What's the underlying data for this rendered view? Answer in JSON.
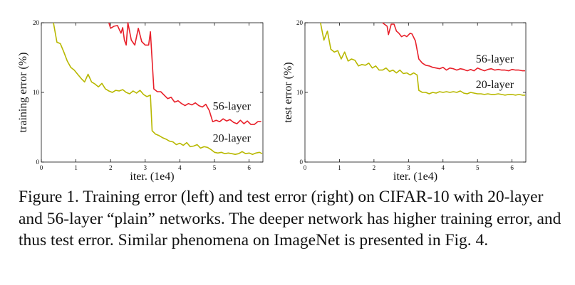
{
  "chart_data": [
    {
      "type": "line",
      "title": "",
      "xlabel": "iter. (1e4)",
      "ylabel": "training error (%)",
      "xlim": [
        0,
        6.4
      ],
      "ylim": [
        0,
        20
      ],
      "xticks": [
        0,
        1,
        2,
        3,
        4,
        5,
        6
      ],
      "yticks": [
        0,
        10,
        20
      ],
      "xtick_labels": [
        "0",
        "1",
        "2",
        "3",
        "4",
        "5",
        "6"
      ],
      "ytick_labels": [
        "0",
        "10",
        "20"
      ],
      "series": [
        {
          "name": "56-layer",
          "color": "#e8202a",
          "points": [
            [
              1.95,
              20
            ],
            [
              2.0,
              19.2
            ],
            [
              2.1,
              19.5
            ],
            [
              2.2,
              19.6
            ],
            [
              2.3,
              18.5
            ],
            [
              2.35,
              19.3
            ],
            [
              2.4,
              17.5
            ],
            [
              2.45,
              16.8
            ],
            [
              2.5,
              20
            ],
            [
              2.6,
              17.5
            ],
            [
              2.7,
              16.8
            ],
            [
              2.8,
              19.2
            ],
            [
              2.9,
              17.3
            ],
            [
              3.0,
              16.8
            ],
            [
              3.1,
              16.8
            ],
            [
              3.15,
              18.7
            ],
            [
              3.25,
              10.5
            ],
            [
              3.35,
              10.1
            ],
            [
              3.45,
              10.1
            ],
            [
              3.55,
              9.6
            ],
            [
              3.65,
              9.1
            ],
            [
              3.75,
              9.3
            ],
            [
              3.85,
              8.6
            ],
            [
              3.95,
              8.8
            ],
            [
              4.05,
              8.4
            ],
            [
              4.15,
              8.1
            ],
            [
              4.25,
              8.4
            ],
            [
              4.35,
              8.2
            ],
            [
              4.45,
              8.5
            ],
            [
              4.55,
              8.1
            ],
            [
              4.65,
              7.9
            ],
            [
              4.75,
              8.3
            ],
            [
              4.85,
              7.4
            ],
            [
              4.95,
              5.8
            ],
            [
              5.05,
              6.0
            ],
            [
              5.15,
              5.8
            ],
            [
              5.25,
              6.2
            ],
            [
              5.35,
              5.9
            ],
            [
              5.45,
              6.1
            ],
            [
              5.55,
              5.7
            ],
            [
              5.65,
              5.5
            ],
            [
              5.75,
              6.0
            ],
            [
              5.85,
              5.5
            ],
            [
              5.95,
              5.9
            ],
            [
              6.05,
              5.4
            ],
            [
              6.15,
              5.4
            ],
            [
              6.25,
              5.8
            ],
            [
              6.35,
              5.8
            ]
          ],
          "label_anchor": [
            6.05,
            7.5
          ]
        },
        {
          "name": "20-layer",
          "color": "#b8b800",
          "points": [
            [
              0.35,
              20
            ],
            [
              0.45,
              17.2
            ],
            [
              0.55,
              17.0
            ],
            [
              0.65,
              15.8
            ],
            [
              0.75,
              14.5
            ],
            [
              0.85,
              13.6
            ],
            [
              0.95,
              13.2
            ],
            [
              1.05,
              12.6
            ],
            [
              1.15,
              12.0
            ],
            [
              1.25,
              11.5
            ],
            [
              1.35,
              12.6
            ],
            [
              1.45,
              11.5
            ],
            [
              1.55,
              11.2
            ],
            [
              1.65,
              10.8
            ],
            [
              1.75,
              11.3
            ],
            [
              1.85,
              10.5
            ],
            [
              1.95,
              10.2
            ],
            [
              2.05,
              10.0
            ],
            [
              2.15,
              10.3
            ],
            [
              2.25,
              10.2
            ],
            [
              2.35,
              10.4
            ],
            [
              2.45,
              10.0
            ],
            [
              2.55,
              9.8
            ],
            [
              2.65,
              10.2
            ],
            [
              2.75,
              9.9
            ],
            [
              2.85,
              10.3
            ],
            [
              2.95,
              9.7
            ],
            [
              3.05,
              9.4
            ],
            [
              3.15,
              9.6
            ],
            [
              3.2,
              4.5
            ],
            [
              3.3,
              4.0
            ],
            [
              3.4,
              3.8
            ],
            [
              3.5,
              3.5
            ],
            [
              3.6,
              3.3
            ],
            [
              3.7,
              3.0
            ],
            [
              3.8,
              2.9
            ],
            [
              3.9,
              2.5
            ],
            [
              4.0,
              2.7
            ],
            [
              4.1,
              2.4
            ],
            [
              4.2,
              2.8
            ],
            [
              4.3,
              2.2
            ],
            [
              4.4,
              2.3
            ],
            [
              4.5,
              2.5
            ],
            [
              4.6,
              2.0
            ],
            [
              4.7,
              2.2
            ],
            [
              4.8,
              2.1
            ],
            [
              4.9,
              1.8
            ],
            [
              5.0,
              1.4
            ],
            [
              5.1,
              1.3
            ],
            [
              5.2,
              1.4
            ],
            [
              5.3,
              1.2
            ],
            [
              5.4,
              1.3
            ],
            [
              5.5,
              1.2
            ],
            [
              5.6,
              1.1
            ],
            [
              5.7,
              1.2
            ],
            [
              5.8,
              1.5
            ],
            [
              5.9,
              1.2
            ],
            [
              6.0,
              1.3
            ],
            [
              6.1,
              1.1
            ],
            [
              6.2,
              1.3
            ],
            [
              6.3,
              1.4
            ],
            [
              6.38,
              1.2
            ]
          ],
          "label_anchor": [
            6.05,
            2.9
          ]
        }
      ]
    },
    {
      "type": "line",
      "title": "",
      "xlabel": "iter. (1e4)",
      "ylabel": "test error (%)",
      "xlim": [
        0,
        6.4
      ],
      "ylim": [
        0,
        20
      ],
      "xticks": [
        0,
        1,
        2,
        3,
        4,
        5,
        6
      ],
      "yticks": [
        0,
        10,
        20
      ],
      "xtick_labels": [
        "0",
        "1",
        "2",
        "3",
        "4",
        "5",
        "6"
      ],
      "ytick_labels": [
        "0",
        "10",
        "20"
      ],
      "series": [
        {
          "name": "56-layer",
          "color": "#e8202a",
          "points": [
            [
              2.25,
              20
            ],
            [
              2.3,
              19.8
            ],
            [
              2.38,
              19.5
            ],
            [
              2.42,
              18.3
            ],
            [
              2.5,
              19.8
            ],
            [
              2.58,
              19.8
            ],
            [
              2.65,
              18.8
            ],
            [
              2.72,
              18.5
            ],
            [
              2.8,
              18.0
            ],
            [
              2.88,
              18.2
            ],
            [
              2.95,
              18.0
            ],
            [
              3.05,
              18.5
            ],
            [
              3.1,
              18.4
            ],
            [
              3.2,
              17.4
            ],
            [
              3.3,
              14.8
            ],
            [
              3.4,
              14.2
            ],
            [
              3.5,
              13.9
            ],
            [
              3.6,
              13.8
            ],
            [
              3.7,
              13.6
            ],
            [
              3.8,
              13.5
            ],
            [
              3.9,
              13.4
            ],
            [
              4.0,
              13.6
            ],
            [
              4.1,
              13.2
            ],
            [
              4.2,
              13.5
            ],
            [
              4.3,
              13.4
            ],
            [
              4.4,
              13.2
            ],
            [
              4.5,
              13.4
            ],
            [
              4.6,
              13.3
            ],
            [
              4.7,
              13.1
            ],
            [
              4.8,
              13.3
            ],
            [
              4.9,
              13.1
            ],
            [
              5.0,
              13.5
            ],
            [
              5.1,
              13.3
            ],
            [
              5.2,
              13.1
            ],
            [
              5.3,
              13.3
            ],
            [
              5.4,
              13.4
            ],
            [
              5.5,
              13.2
            ],
            [
              5.6,
              13.3
            ],
            [
              5.7,
              13.2
            ],
            [
              5.8,
              13.2
            ],
            [
              5.9,
              13.1
            ],
            [
              6.0,
              13.3
            ],
            [
              6.1,
              13.2
            ],
            [
              6.2,
              13.2
            ],
            [
              6.3,
              13.1
            ],
            [
              6.38,
              13.1
            ]
          ],
          "label_anchor": [
            6.05,
            14.3
          ]
        },
        {
          "name": "20-layer",
          "color": "#b8b800",
          "points": [
            [
              0.45,
              20
            ],
            [
              0.55,
              17.5
            ],
            [
              0.65,
              18.8
            ],
            [
              0.75,
              16.2
            ],
            [
              0.85,
              15.8
            ],
            [
              0.95,
              16.0
            ],
            [
              1.05,
              14.8
            ],
            [
              1.15,
              15.8
            ],
            [
              1.25,
              14.5
            ],
            [
              1.35,
              14.8
            ],
            [
              1.45,
              14.6
            ],
            [
              1.55,
              13.8
            ],
            [
              1.65,
              14.0
            ],
            [
              1.75,
              13.9
            ],
            [
              1.85,
              14.2
            ],
            [
              1.95,
              13.5
            ],
            [
              2.05,
              13.8
            ],
            [
              2.15,
              13.2
            ],
            [
              2.25,
              13.2
            ],
            [
              2.35,
              13.5
            ],
            [
              2.45,
              13.0
            ],
            [
              2.55,
              13.2
            ],
            [
              2.65,
              12.8
            ],
            [
              2.75,
              13.2
            ],
            [
              2.85,
              12.7
            ],
            [
              2.95,
              12.8
            ],
            [
              3.05,
              12.5
            ],
            [
              3.15,
              12.8
            ],
            [
              3.25,
              12.5
            ],
            [
              3.3,
              10.3
            ],
            [
              3.4,
              10.0
            ],
            [
              3.5,
              10.0
            ],
            [
              3.6,
              9.8
            ],
            [
              3.7,
              10.0
            ],
            [
              3.8,
              9.9
            ],
            [
              3.9,
              10.1
            ],
            [
              4.0,
              10.0
            ],
            [
              4.1,
              10.1
            ],
            [
              4.2,
              10.0
            ],
            [
              4.3,
              10.1
            ],
            [
              4.4,
              10.0
            ],
            [
              4.5,
              10.2
            ],
            [
              4.6,
              9.9
            ],
            [
              4.7,
              9.8
            ],
            [
              4.8,
              10.0
            ],
            [
              4.9,
              9.9
            ],
            [
              5.0,
              9.8
            ],
            [
              5.1,
              9.8
            ],
            [
              5.2,
              9.7
            ],
            [
              5.3,
              9.8
            ],
            [
              5.4,
              9.7
            ],
            [
              5.5,
              9.7
            ],
            [
              5.6,
              9.8
            ],
            [
              5.7,
              9.7
            ],
            [
              5.8,
              9.6
            ],
            [
              5.9,
              9.7
            ],
            [
              6.0,
              9.7
            ],
            [
              6.1,
              9.6
            ],
            [
              6.2,
              9.7
            ],
            [
              6.3,
              9.6
            ],
            [
              6.38,
              9.6
            ]
          ],
          "label_anchor": [
            6.05,
            10.6
          ]
        }
      ]
    }
  ],
  "caption": "Figure 1. Training error (left) and test error (right) on CIFAR-10 with 20-layer and 56-layer “plain” networks. The deeper network has higher training error, and thus test error.  Similar phenomena on ImageNet is presented in Fig. 4."
}
